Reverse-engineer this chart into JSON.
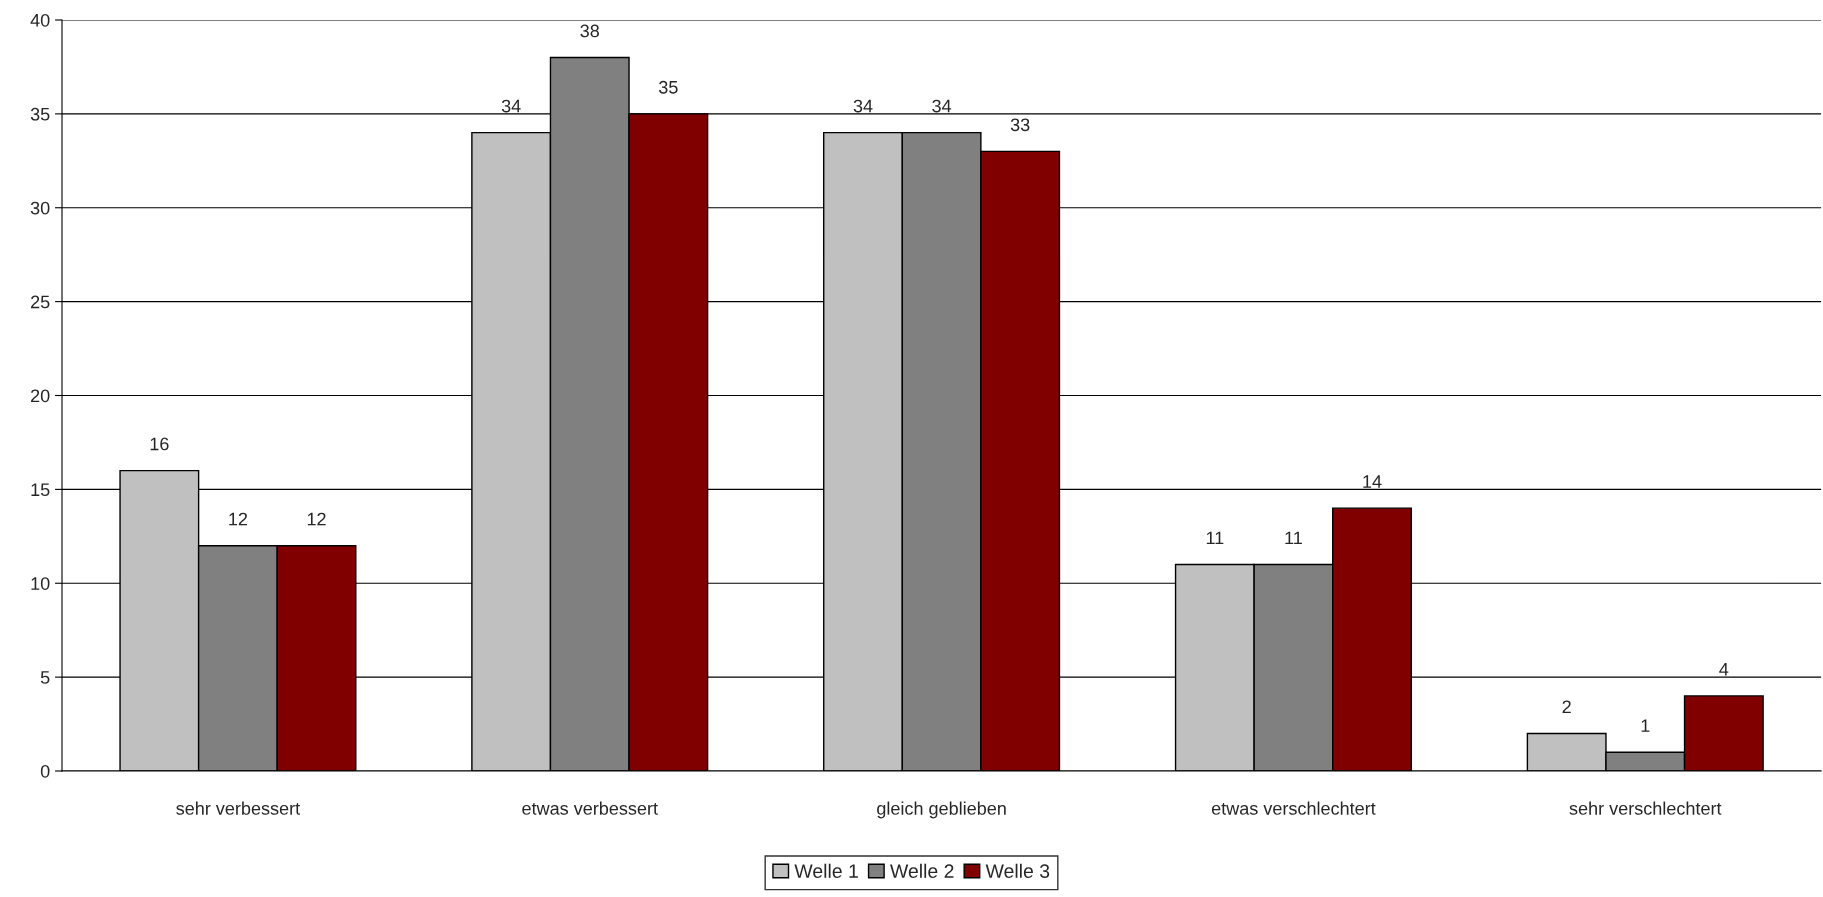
{
  "chart_data": {
    "type": "bar",
    "categories": [
      "sehr verbessert",
      "etwas verbessert",
      "gleich geblieben",
      "etwas verschlechtert",
      "sehr verschlechtert"
    ],
    "series": [
      {
        "name": "Welle 1",
        "color": "#c0c0c0",
        "values": [
          16,
          34,
          34,
          11,
          2
        ]
      },
      {
        "name": "Welle 2",
        "color": "#808080",
        "values": [
          12,
          38,
          34,
          11,
          1
        ]
      },
      {
        "name": "Welle 3",
        "color": "#800000",
        "values": [
          12,
          35,
          33,
          14,
          4
        ]
      }
    ],
    "ylim": [
      0,
      40
    ],
    "yticks": [
      0,
      5,
      10,
      15,
      20,
      25,
      30,
      35,
      40
    ],
    "grid": "y",
    "legend": "bottom",
    "data_labels": true
  }
}
